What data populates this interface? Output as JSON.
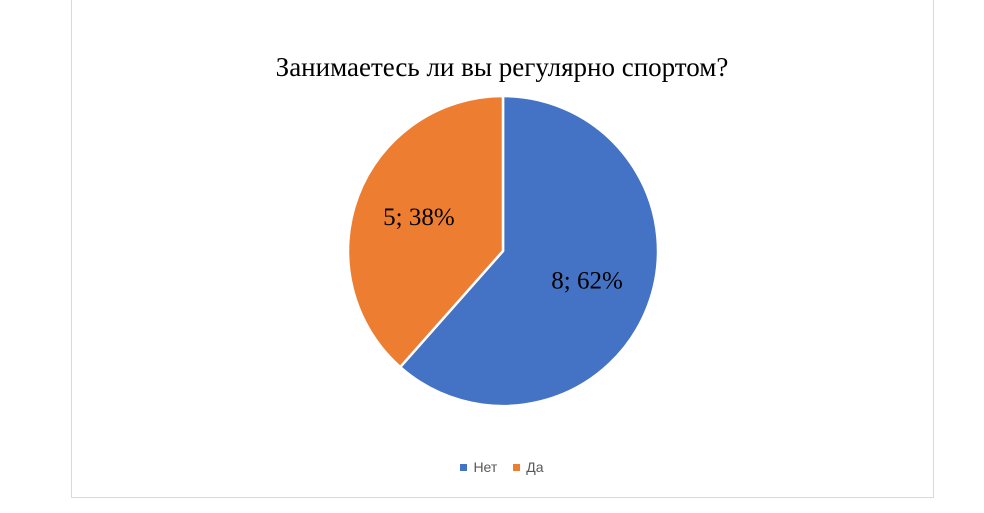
{
  "chart_data": {
    "type": "pie",
    "title": "Занимаетесь ли вы регулярно спортом?",
    "categories": [
      "Нет",
      "Да"
    ],
    "values": [
      8,
      5
    ],
    "percentages": [
      "62%",
      "38%"
    ],
    "data_labels": [
      "8; 62%",
      "5; 38%"
    ],
    "colors": [
      "#4472C4",
      "#ED7D31"
    ],
    "legend_position": "bottom"
  }
}
